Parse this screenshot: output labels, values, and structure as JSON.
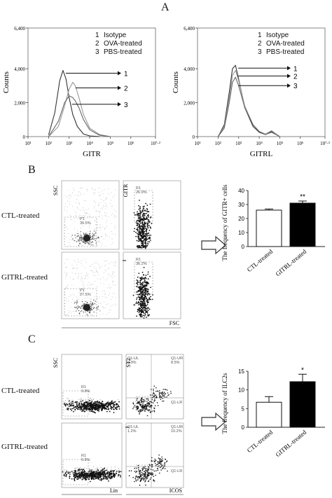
{
  "panels": {
    "A": {
      "letter": "A",
      "legend": [
        {
          "num": "1",
          "label": "Isotype"
        },
        {
          "num": "2",
          "label": "OVA-treated"
        },
        {
          "num": "3",
          "label": "PBS-treated"
        }
      ],
      "ylabel": "Counts",
      "yticks": [
        "0",
        "2,000",
        "4,000",
        "6,400"
      ],
      "xticks": [
        "10¹",
        "10²",
        "10³",
        "10⁴",
        "10⁵",
        "10⁶",
        "10⁷·²"
      ],
      "left_xlabel": "GITR",
      "right_xlabel": "GITRL",
      "arrow_labels": [
        "1",
        "2",
        "3"
      ]
    },
    "B": {
      "letter": "B",
      "rows": [
        "CTL-treated",
        "GITRL-treated"
      ],
      "ssc_label": "SSC",
      "gitr_label": "GITR",
      "fsc_label": "FSC",
      "gates": {
        "p1_top": {
          "name": "P1",
          "value": "39.5%"
        },
        "r1_top": {
          "name": "R1",
          "value": "26.9%"
        },
        "p1_bottom": {
          "name": "P1",
          "value": "27.5%"
        },
        "r1_bottom": {
          "name": "R1",
          "value": "36.2%"
        }
      },
      "chart_ylabel": "The frequency of GITR+ cells",
      "significance": "**"
    },
    "C": {
      "letter": "C",
      "rows": [
        "CTL-treated",
        "GITRL-treated"
      ],
      "ssc_label": "SSC",
      "lin_label": "Lin",
      "st2_label": "ST2",
      "icos_label": "ICOS",
      "gates": {
        "r1_top": {
          "name": "R1",
          "value": "9.8%"
        },
        "r1_bottom": {
          "name": "R1",
          "value": "6.8%"
        },
        "ul_top": {
          "name": "Q1-UL",
          "value": "0.9%"
        },
        "ur_top": {
          "name": "Q1-UR",
          "value": "8.5%"
        },
        "lr_top": {
          "name": "Q1-LR",
          "value": ""
        },
        "ul_bottom": {
          "name": "Q1-UL",
          "value": "1.2%"
        },
        "ur_bottom": {
          "name": "Q1-UR",
          "value": "10.2%"
        },
        "lr_bottom": {
          "name": "Q1-LR",
          "value": ""
        }
      },
      "chart_ylabel": "The frequency of ILC2s",
      "significance": "*"
    }
  },
  "colors": {
    "treated_bar": "#000000",
    "control_bar": "#ffffff",
    "axis": "#222222"
  },
  "chart_data": [
    {
      "type": "line",
      "title": "",
      "xlabel": "GITR",
      "ylabel": "Counts",
      "xscale": "log",
      "xlim": [
        10,
        15848931.9
      ],
      "ylim": [
        0,
        6400
      ],
      "series": [
        {
          "name": "Isotype",
          "x": [
            100,
            200,
            350,
            500,
            700,
            1000,
            1500,
            2500,
            5000,
            10000,
            30000
          ],
          "y": [
            100,
            1400,
            3300,
            3900,
            3400,
            2300,
            1300,
            600,
            150,
            40,
            0
          ]
        },
        {
          "name": "OVA-treated",
          "x": [
            100,
            300,
            600,
            1000,
            1500,
            2000,
            3000,
            5000,
            10000,
            30000,
            100000
          ],
          "y": [
            0,
            600,
            1800,
            2800,
            3200,
            3000,
            2300,
            1300,
            500,
            120,
            0
          ]
        },
        {
          "name": "PBS-treated",
          "x": [
            100,
            300,
            600,
            1000,
            1500,
            2000,
            3000,
            5000,
            10000,
            30000,
            100000
          ],
          "y": [
            0,
            900,
            2000,
            2400,
            2300,
            2100,
            1700,
            1000,
            400,
            80,
            0
          ]
        }
      ]
    },
    {
      "type": "line",
      "title": "",
      "xlabel": "GITRL",
      "ylabel": "Counts",
      "xscale": "log",
      "xlim": [
        10,
        15848931.9
      ],
      "ylim": [
        0,
        6400
      ],
      "series": [
        {
          "name": "Isotype",
          "x": [
            100,
            200,
            350,
            500,
            700,
            1000,
            2000,
            5000,
            10000,
            20000,
            40000,
            100000
          ],
          "y": [
            0,
            700,
            2600,
            4000,
            4200,
            3400,
            1700,
            600,
            250,
            120,
            300,
            0
          ]
        },
        {
          "name": "OVA-treated",
          "x": [
            100,
            200,
            350,
            500,
            700,
            1000,
            2000,
            5000,
            10000,
            20000,
            40000,
            100000
          ],
          "y": [
            0,
            600,
            2300,
            3600,
            3900,
            3300,
            1800,
            700,
            300,
            150,
            350,
            0
          ]
        },
        {
          "name": "PBS-treated",
          "x": [
            100,
            200,
            350,
            500,
            700,
            1000,
            2000,
            5000,
            10000,
            20000,
            40000,
            100000
          ],
          "y": [
            0,
            500,
            2000,
            3200,
            3500,
            3000,
            1700,
            700,
            300,
            120,
            250,
            0
          ]
        }
      ]
    },
    {
      "type": "bar",
      "title": "",
      "xlabel": "",
      "ylabel": "The frequency of GITR+ cells",
      "categories": [
        "CTL-treated",
        "GITRL-treated"
      ],
      "values": [
        26,
        31
      ],
      "errors": [
        0.8,
        1.5
      ],
      "ylim": [
        0,
        40
      ],
      "yticks": [
        0,
        10,
        20,
        30,
        40
      ],
      "annotations": [
        "",
        "**"
      ]
    },
    {
      "type": "bar",
      "title": "",
      "xlabel": "",
      "ylabel": "The frequency of ILC2s",
      "categories": [
        "CTL-treated",
        "GITRL-treated"
      ],
      "values": [
        6.7,
        12.2
      ],
      "errors": [
        1.5,
        2.0
      ],
      "ylim": [
        0,
        15
      ],
      "yticks": [
        0,
        5,
        10,
        15
      ],
      "annotations": [
        "",
        "*"
      ]
    }
  ]
}
